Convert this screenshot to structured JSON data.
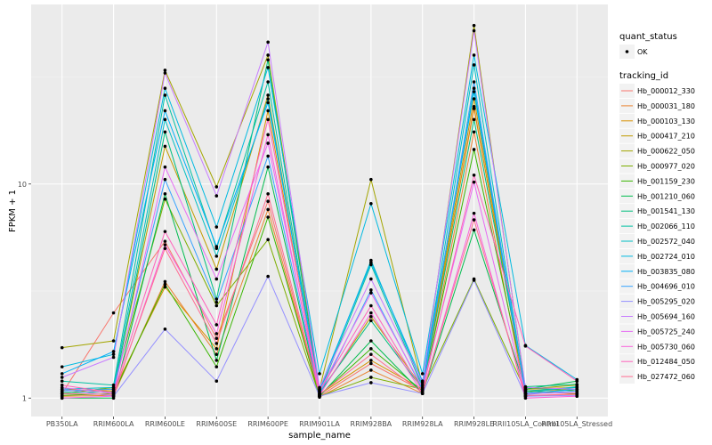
{
  "chart_data": {
    "type": "line",
    "title": "",
    "xlabel": "sample_name",
    "ylabel": "FPKM + 1",
    "y_scale": "log10",
    "ylim": [
      0.82,
      69
    ],
    "y_ticks": [
      1,
      10
    ],
    "y_tick_labels": [
      "1",
      "10"
    ],
    "grid": true,
    "legend_placement": "right",
    "categories": [
      "PB350LA",
      "RRIM600LA",
      "RRIM600LE",
      "RRIM600SE",
      "RRIM600PE",
      "RRIM901LA",
      "RRIM928BA",
      "RRIM928LA",
      "RRIM928LE",
      "RRII105LA_Control",
      "RRII105LA_Stressed"
    ],
    "point_legend": {
      "title": "quant_status",
      "entries": [
        {
          "label": "OK",
          "shape": "circle",
          "color": "#000000"
        }
      ]
    },
    "line_legend_title": "tracking_id",
    "series": [
      {
        "name": "Hb_000012_330",
        "color": "#F8766D",
        "values": [
          1.05,
          2.5,
          5.4,
          1.9,
          8.3,
          1.02,
          1.45,
          1.08,
          23.0,
          1.05,
          1.1
        ]
      },
      {
        "name": "Hb_000031_180",
        "color": "#EA8331",
        "values": [
          1.02,
          1.03,
          3.5,
          1.6,
          7.6,
          1.01,
          1.35,
          1.05,
          17.5,
          1.02,
          1.05
        ]
      },
      {
        "name": "Hb_000103_130",
        "color": "#D89000",
        "values": [
          1.1,
          1.08,
          3.3,
          1.7,
          22.0,
          1.04,
          1.5,
          1.1,
          22.5,
          1.1,
          1.12
        ]
      },
      {
        "name": "Hb_000417_210",
        "color": "#C09B00",
        "values": [
          1.08,
          1.1,
          15.0,
          4.0,
          26.0,
          1.05,
          2.4,
          1.12,
          25.0,
          1.08,
          1.1
        ]
      },
      {
        "name": "Hb_000622_050",
        "color": "#A3A500",
        "values": [
          1.72,
          1.85,
          34.0,
          9.7,
          40.0,
          1.1,
          10.5,
          1.15,
          55.0,
          1.1,
          1.15
        ]
      },
      {
        "name": "Hb_000977_020",
        "color": "#7CAE00",
        "values": [
          1.05,
          1.12,
          8.5,
          2.7,
          5.5,
          1.02,
          1.25,
          1.1,
          3.6,
          1.08,
          1.05
        ]
      },
      {
        "name": "Hb_001159_230",
        "color": "#39B600",
        "values": [
          1.03,
          1.05,
          3.4,
          1.4,
          7.0,
          1.03,
          1.7,
          1.08,
          14.5,
          1.12,
          1.08
        ]
      },
      {
        "name": "Hb_001210_060",
        "color": "#00BB4E",
        "values": [
          1.0,
          1.0,
          9.0,
          1.5,
          12.0,
          1.02,
          1.85,
          1.05,
          6.1,
          1.1,
          1.2
        ]
      },
      {
        "name": "Hb_001541_130",
        "color": "#00BF7D",
        "values": [
          1.06,
          1.07,
          17.5,
          2.9,
          38.0,
          1.06,
          2.3,
          1.1,
          20.0,
          1.13,
          1.16
        ]
      },
      {
        "name": "Hb_002066_110",
        "color": "#00C1A3",
        "values": [
          1.2,
          1.15,
          26.0,
          5.0,
          30.0,
          1.05,
          4.2,
          1.12,
          28.0,
          1.08,
          1.12
        ]
      },
      {
        "name": "Hb_002572_040",
        "color": "#00BFC4",
        "values": [
          1.1,
          1.12,
          20.0,
          4.6,
          25.0,
          1.07,
          4.4,
          1.15,
          36.0,
          1.06,
          1.13
        ]
      },
      {
        "name": "Hb_002724_010",
        "color": "#00BAE0",
        "values": [
          1.4,
          1.6,
          28.0,
          6.3,
          35.0,
          1.3,
          8.1,
          1.3,
          40.0,
          1.76,
          1.22
        ]
      },
      {
        "name": "Hb_003835_080",
        "color": "#00B0F6",
        "values": [
          1.3,
          1.65,
          22.0,
          5.1,
          24.0,
          1.1,
          4.3,
          1.2,
          27.0,
          1.05,
          1.1
        ]
      },
      {
        "name": "Hb_004696_010",
        "color": "#35A2FF",
        "values": [
          1.08,
          1.1,
          10.5,
          2.8,
          13.5,
          1.04,
          3.2,
          1.1,
          30.0,
          1.04,
          1.08
        ]
      },
      {
        "name": "Hb_005295_020",
        "color": "#9590FF",
        "values": [
          1.1,
          1.02,
          2.1,
          1.2,
          3.7,
          1.02,
          1.18,
          1.05,
          3.55,
          1.02,
          1.03
        ]
      },
      {
        "name": "Hb_005694_160",
        "color": "#C77CFF",
        "values": [
          1.25,
          1.55,
          33.0,
          8.8,
          46.0,
          1.12,
          3.6,
          1.18,
          52.0,
          1.12,
          1.1
        ]
      },
      {
        "name": "Hb_005725_240",
        "color": "#E76BF3",
        "values": [
          1.12,
          1.05,
          12.0,
          3.6,
          15.5,
          1.08,
          3.1,
          1.12,
          10.2,
          1.05,
          1.06
        ]
      },
      {
        "name": "Hb_005730_060",
        "color": "#FA62DB",
        "values": [
          1.0,
          1.02,
          5.2,
          2.0,
          17.0,
          1.03,
          2.5,
          1.05,
          7.3,
          1.0,
          1.02
        ]
      },
      {
        "name": "Hb_012484_050",
        "color": "#FF62BC",
        "values": [
          1.15,
          1.06,
          6.0,
          2.2,
          20.0,
          1.08,
          2.7,
          1.08,
          11.0,
          1.75,
          1.2
        ]
      },
      {
        "name": "Hb_027472_060",
        "color": "#FF6C91",
        "values": [
          1.05,
          1.04,
          5.0,
          1.8,
          9.0,
          1.04,
          1.6,
          1.06,
          6.8,
          1.03,
          1.04
        ]
      }
    ]
  }
}
